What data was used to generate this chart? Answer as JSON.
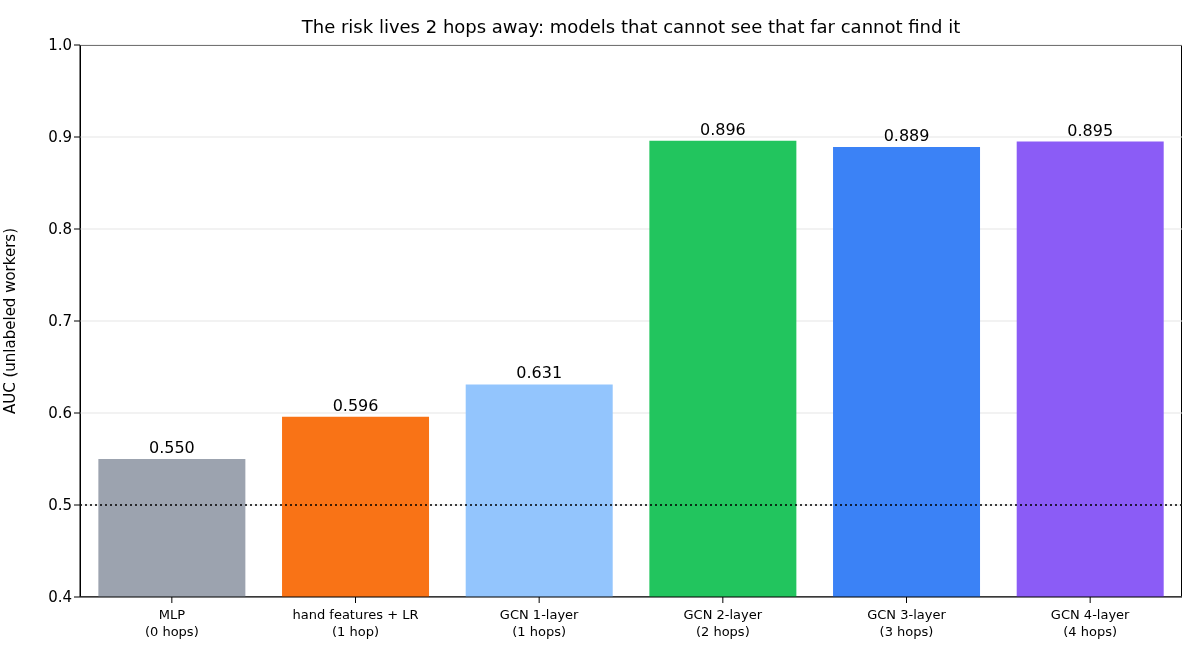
{
  "chart_data": {
    "type": "bar",
    "title": "The risk lives 2 hops away: models that cannot see that far cannot find it",
    "ylabel": "AUC (unlabeled workers)",
    "categories": [
      "MLP\n(0 hops)",
      "hand features + LR\n(1 hop)",
      "GCN 1-layer\n(1 hops)",
      "GCN 2-layer\n(2 hops)",
      "GCN 3-layer\n(3 hops)",
      "GCN 4-layer\n(4 hops)"
    ],
    "values": [
      0.55,
      0.596,
      0.631,
      0.896,
      0.889,
      0.895
    ],
    "colors": [
      "#9ca3af",
      "#f97316",
      "#93c5fd",
      "#22c55e",
      "#3b82f6",
      "#8b5cf6"
    ],
    "value_labels": [
      "0.550",
      "0.596",
      "0.631",
      "0.896",
      "0.889",
      "0.895"
    ],
    "ylim": [
      0.4,
      1.0
    ],
    "yticks": [
      0.4,
      0.5,
      0.6,
      0.7,
      0.8,
      0.9,
      {
        "value": 1.0,
        "label": "1.0"
      }
    ],
    "grid": "y",
    "ref_lines": [
      {
        "axis": "y",
        "value": 0.5,
        "color": "#000000",
        "line_style": "dotted"
      }
    ]
  }
}
